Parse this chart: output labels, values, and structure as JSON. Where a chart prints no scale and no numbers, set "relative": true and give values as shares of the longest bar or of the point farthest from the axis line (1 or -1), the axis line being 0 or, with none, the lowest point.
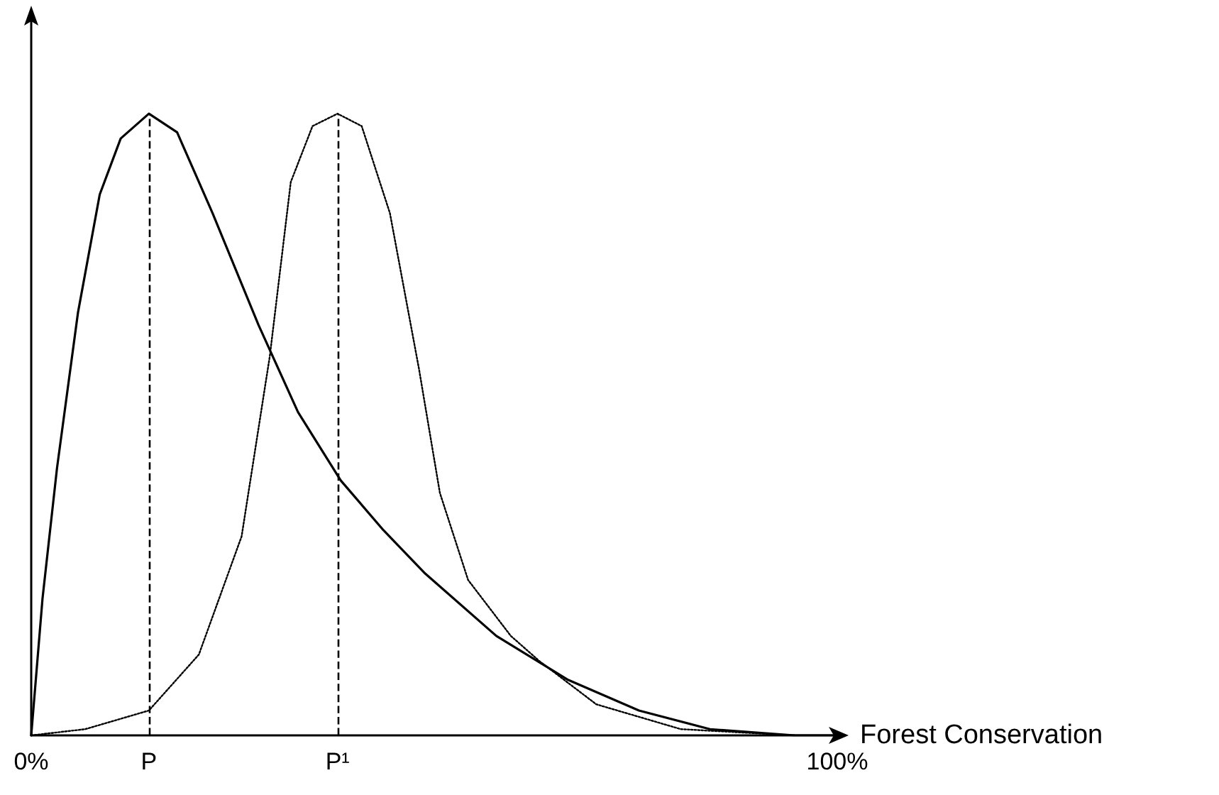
{
  "chart_data": {
    "type": "line",
    "relative": true,
    "xlabel": "Forest Conservation",
    "xlim": [
      0,
      100
    ],
    "xticks": [
      {
        "value": 0,
        "label": "0%"
      },
      {
        "value": 14.6,
        "label": "P"
      },
      {
        "value": 38.0,
        "label": "P¹"
      },
      {
        "value": 100,
        "label": "100%"
      }
    ],
    "grid": false,
    "marker": "none",
    "ref_lines": [
      {
        "axis": "x",
        "value": 14.6,
        "line_style": "dashed",
        "color": "#000000"
      },
      {
        "axis": "x",
        "value": 38.0,
        "line_style": "dashed",
        "color": "#000000"
      }
    ],
    "series": [
      {
        "color": "#000000",
        "line_style": "solid",
        "x": [
          0,
          1.4,
          3.2,
          5.8,
          8.5,
          11.1,
          14.6,
          18.1,
          22.5,
          28.2,
          33.1,
          38.4,
          43.7,
          48.9,
          57.7,
          66.5,
          75.4,
          84.2,
          94.7,
          100
        ],
        "values": [
          0,
          0.22,
          0.43,
          0.68,
          0.87,
          0.96,
          1,
          0.97,
          0.84,
          0.66,
          0.52,
          0.41,
          0.33,
          0.26,
          0.16,
          0.09,
          0.04,
          0.01,
          0,
          0
        ]
      },
      {
        "color": "#000000",
        "line_style": "dotted",
        "x": [
          0,
          6.7,
          14.6,
          20.8,
          26.1,
          29.6,
          32.2,
          34.9,
          38.0,
          41.0,
          44.5,
          48.1,
          50.7,
          54.2,
          59.5,
          63.0,
          70.1,
          80.6,
          94.7
        ],
        "values": [
          0,
          0.01,
          0.04,
          0.13,
          0.32,
          0.61,
          0.89,
          0.98,
          1,
          0.98,
          0.84,
          0.59,
          0.39,
          0.25,
          0.16,
          0.12,
          0.05,
          0.01,
          0
        ]
      }
    ]
  }
}
